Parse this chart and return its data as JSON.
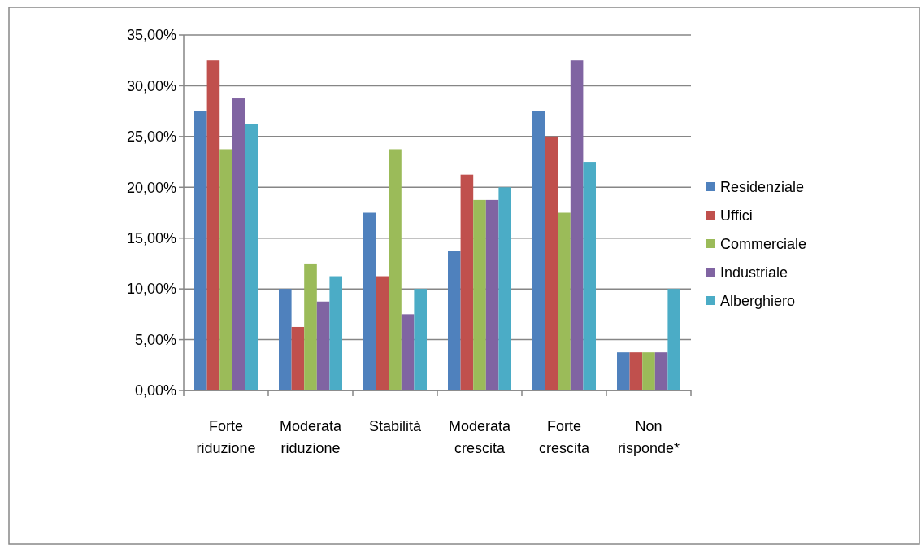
{
  "chart_data": {
    "type": "bar",
    "categories": [
      "Forte riduzione",
      "Moderata riduzione",
      "Stabilità",
      "Moderata crescita",
      "Forte crescita",
      "Non risponde*"
    ],
    "series": [
      {
        "name": "Residenziale",
        "color": "#4f81bd",
        "values": [
          27.5,
          10,
          17.5,
          13.75,
          27.5,
          3.75
        ]
      },
      {
        "name": "Uffici",
        "color": "#c0504d",
        "values": [
          32.5,
          6.25,
          11.25,
          21.25,
          25,
          3.75
        ]
      },
      {
        "name": "Commerciale",
        "color": "#9bbb59",
        "values": [
          23.75,
          12.5,
          23.75,
          18.75,
          17.5,
          3.75
        ]
      },
      {
        "name": "Industriale",
        "color": "#8064a2",
        "values": [
          28.75,
          8.75,
          7.5,
          18.75,
          32.5,
          3.75
        ]
      },
      {
        "name": "Alberghiero",
        "color": "#4bacc6",
        "values": [
          26.25,
          11.25,
          10,
          20,
          22.5,
          10
        ]
      }
    ],
    "ylim": [
      0,
      35
    ],
    "yticks": [
      {
        "value": 0,
        "label": "0,00%"
      },
      {
        "value": 5,
        "label": "5,00%"
      },
      {
        "value": 10,
        "label": "10,00%"
      },
      {
        "value": 15,
        "label": "15,00%"
      },
      {
        "value": 20,
        "label": "20,00%"
      },
      {
        "value": 25,
        "label": "25,00%"
      },
      {
        "value": 30,
        "label": "30,00%"
      },
      {
        "value": 35,
        "label": "35,00%"
      }
    ],
    "grid": "y",
    "legend": "right"
  }
}
